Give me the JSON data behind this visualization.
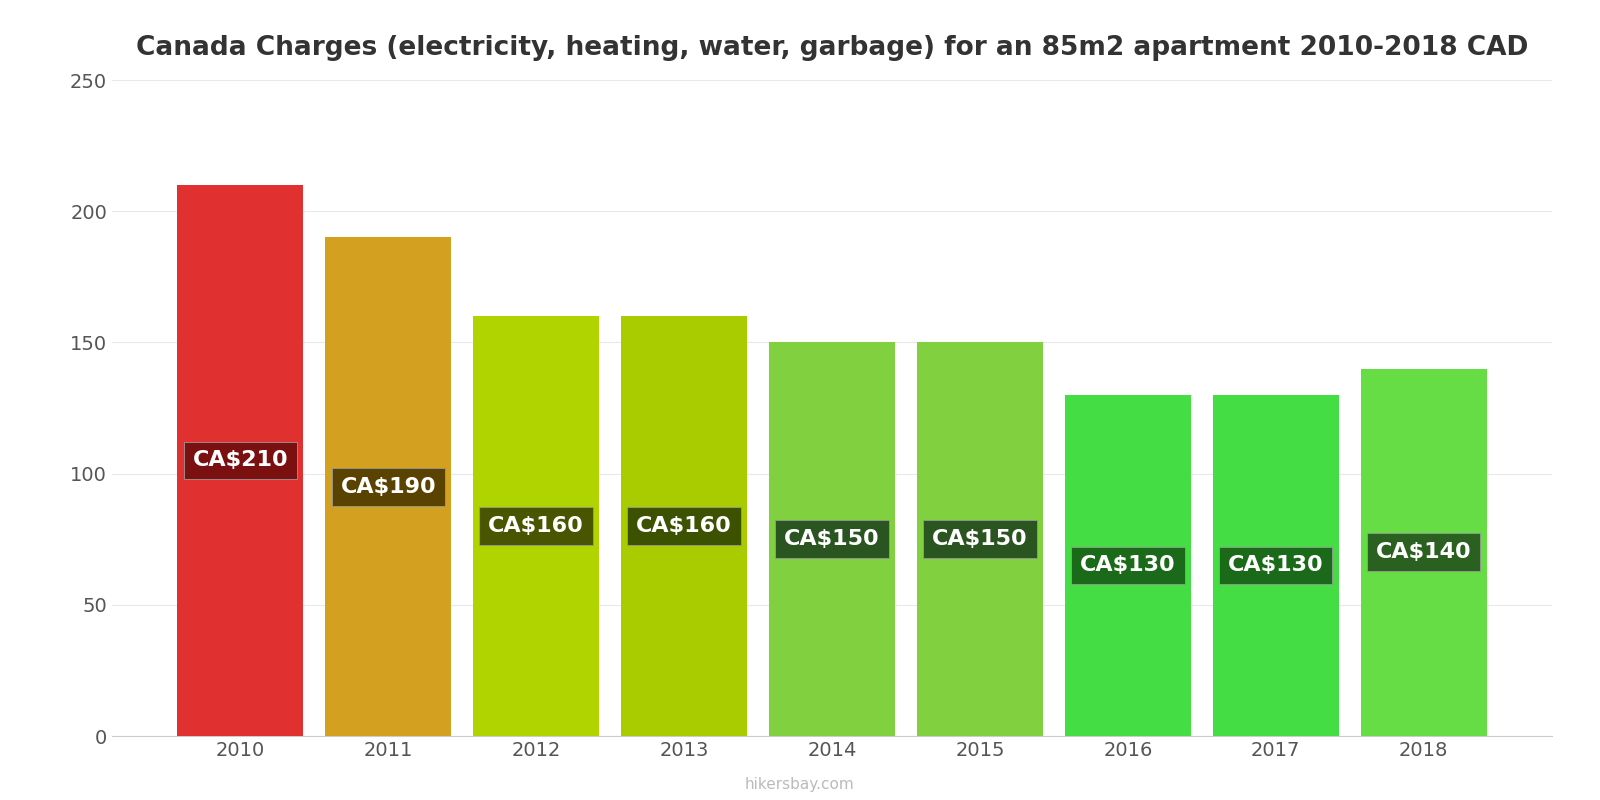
{
  "title": "Canada Charges (electricity, heating, water, garbage) for an 85m2 apartment 2010-2018 CAD",
  "years": [
    2010,
    2011,
    2012,
    2013,
    2014,
    2015,
    2016,
    2017,
    2018
  ],
  "values": [
    210,
    190,
    160,
    160,
    150,
    150,
    130,
    130,
    140
  ],
  "bar_colors": [
    "#e03030",
    "#d4a020",
    "#b0d400",
    "#a8cc00",
    "#80d040",
    "#80d040",
    "#44dd44",
    "#44dd44",
    "#66dd44"
  ],
  "label_bg_colors": [
    "#7a1010",
    "#5a4200",
    "#4a5500",
    "#3d5200",
    "#2a5520",
    "#2a5520",
    "#1a6a1a",
    "#1a6a1a",
    "#2a6020"
  ],
  "ylim": [
    0,
    250
  ],
  "yticks": [
    0,
    50,
    100,
    150,
    200,
    250
  ],
  "watermark": "hikersbay.com",
  "title_fontsize": 19,
  "tick_fontsize": 14,
  "label_fontsize": 16,
  "bar_width": 0.85
}
